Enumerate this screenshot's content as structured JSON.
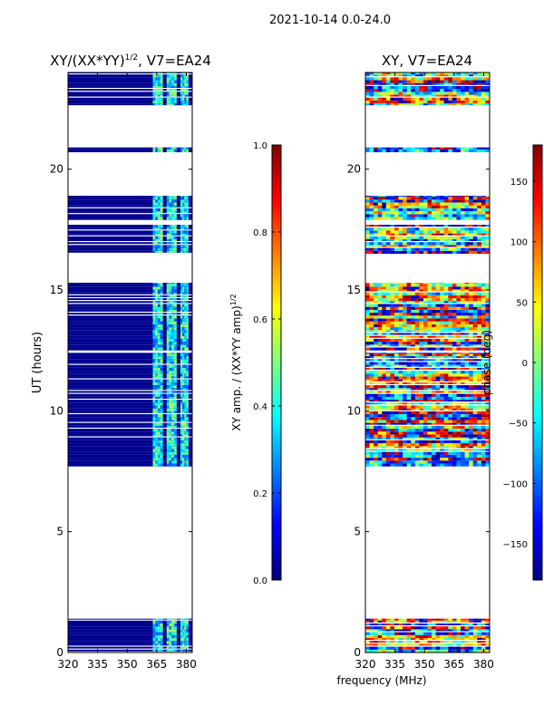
{
  "figure_title": "2021-10-14 0.0-24.0",
  "xlabel": "frequency (MHz)",
  "colors": {
    "jet": [
      "#00007f",
      "#0000ff",
      "#007fff",
      "#00ffff",
      "#7fff7f",
      "#ffff00",
      "#ff7f00",
      "#ff0000",
      "#7f0000"
    ]
  },
  "chart_data": [
    {
      "type": "heatmap",
      "title_main": "XY/(XX*YY)",
      "title_sup": "1/2",
      "title_suffix": ", V7=EA24",
      "xlabel": "",
      "ylabel": "UT (hours)",
      "xlim": [
        320,
        383
      ],
      "ylim": [
        0,
        24
      ],
      "xticks": [
        320,
        335,
        350,
        365,
        380
      ],
      "yticks": [
        0,
        5,
        10,
        15,
        20
      ],
      "colorbar": {
        "label": "XY amp. / (XX*YY amp)",
        "label_sup": "1/2",
        "range": [
          0.0,
          1.0
        ],
        "ticks": [
          "0.0",
          "0.2",
          "0.4",
          "0.6",
          "0.8",
          "1.0"
        ]
      },
      "data_time_ranges_hours": [
        [
          0.0,
          1.4
        ],
        [
          7.7,
          12.4
        ],
        [
          12.5,
          15.3
        ],
        [
          16.5,
          17.7
        ],
        [
          17.9,
          18.9
        ],
        [
          20.7,
          20.9
        ],
        [
          22.6,
          24.0
        ]
      ],
      "rfi_channel_ranges_mhz": [
        [
          363,
          368
        ],
        [
          370,
          375
        ],
        [
          377,
          381
        ]
      ]
    },
    {
      "type": "heatmap",
      "title_main": "XY, V7=EA24",
      "xlabel": "",
      "ylabel": "",
      "xlim": [
        320,
        383
      ],
      "ylim": [
        0,
        24
      ],
      "xticks": [
        320,
        335,
        350,
        365,
        380
      ],
      "yticks": [
        0,
        5,
        10,
        15,
        20
      ],
      "colorbar": {
        "label": "phase (deg)",
        "range": [
          -180,
          180
        ],
        "ticks": [
          "150",
          "100",
          "50",
          "0",
          "−50",
          "−100",
          "−150"
        ]
      },
      "data_time_ranges_hours": [
        [
          0.0,
          1.4
        ],
        [
          7.7,
          12.4
        ],
        [
          12.5,
          15.3
        ],
        [
          16.5,
          17.7
        ],
        [
          17.9,
          18.9
        ],
        [
          20.7,
          20.9
        ],
        [
          22.6,
          24.0
        ]
      ]
    }
  ]
}
